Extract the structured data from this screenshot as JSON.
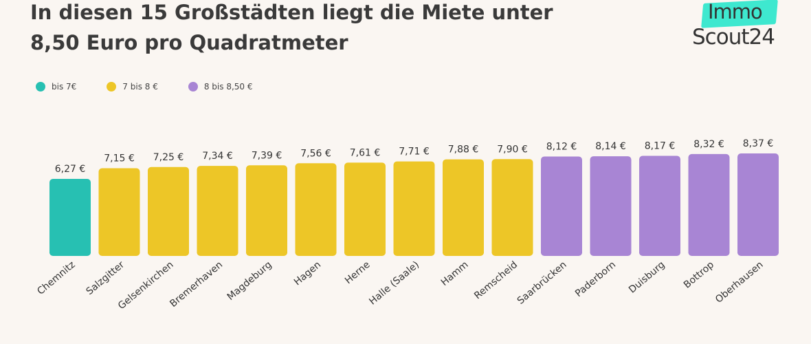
{
  "title_lines": [
    "In diesen 15 Großstädten liegt die Miete unter",
    "8,50 Euro pro Quadratmeter"
  ],
  "logo": {
    "line1": "Immo",
    "line2": "Scout24",
    "accent": "#3ee8cf"
  },
  "legend": [
    {
      "label": "bis 7€",
      "color": "#27c0b2"
    },
    {
      "label": "7 bis 8 €",
      "color": "#edc627"
    },
    {
      "label": "8 bis 8,50 €",
      "color": "#a885d4"
    }
  ],
  "chart_data": {
    "type": "bar",
    "categories": [
      "Chemnitz",
      "Salzgitter",
      "Gelsenkirchen",
      "Bremerhaven",
      "Magdeburg",
      "Hagen",
      "Herne",
      "Halle (Saale)",
      "Hamm",
      "Remscheid",
      "Saarbrücken",
      "Paderborn",
      "Duisburg",
      "Bottrop",
      "Oberhausen"
    ],
    "values": [
      6.27,
      7.15,
      7.25,
      7.34,
      7.39,
      7.56,
      7.61,
      7.71,
      7.88,
      7.9,
      8.12,
      8.14,
      8.17,
      8.32,
      8.37
    ],
    "value_labels": [
      "6,27 €",
      "7,15 €",
      "7,25 €",
      "7,34 €",
      "7,39 €",
      "7,56 €",
      "7,61 €",
      "7,71 €",
      "7,88 €",
      "7,90 €",
      "8,12 €",
      "8,14 €",
      "8,17 €",
      "8,32 €",
      "8,37 €"
    ],
    "groups": [
      0,
      1,
      1,
      1,
      1,
      1,
      1,
      1,
      1,
      1,
      2,
      2,
      2,
      2,
      2
    ],
    "title": "In diesen 15 Großstädten liegt die Miete unter 8,50 Euro pro Quadratmeter",
    "xlabel": "",
    "ylabel": "",
    "grid": false,
    "legend_position": "top-left"
  }
}
